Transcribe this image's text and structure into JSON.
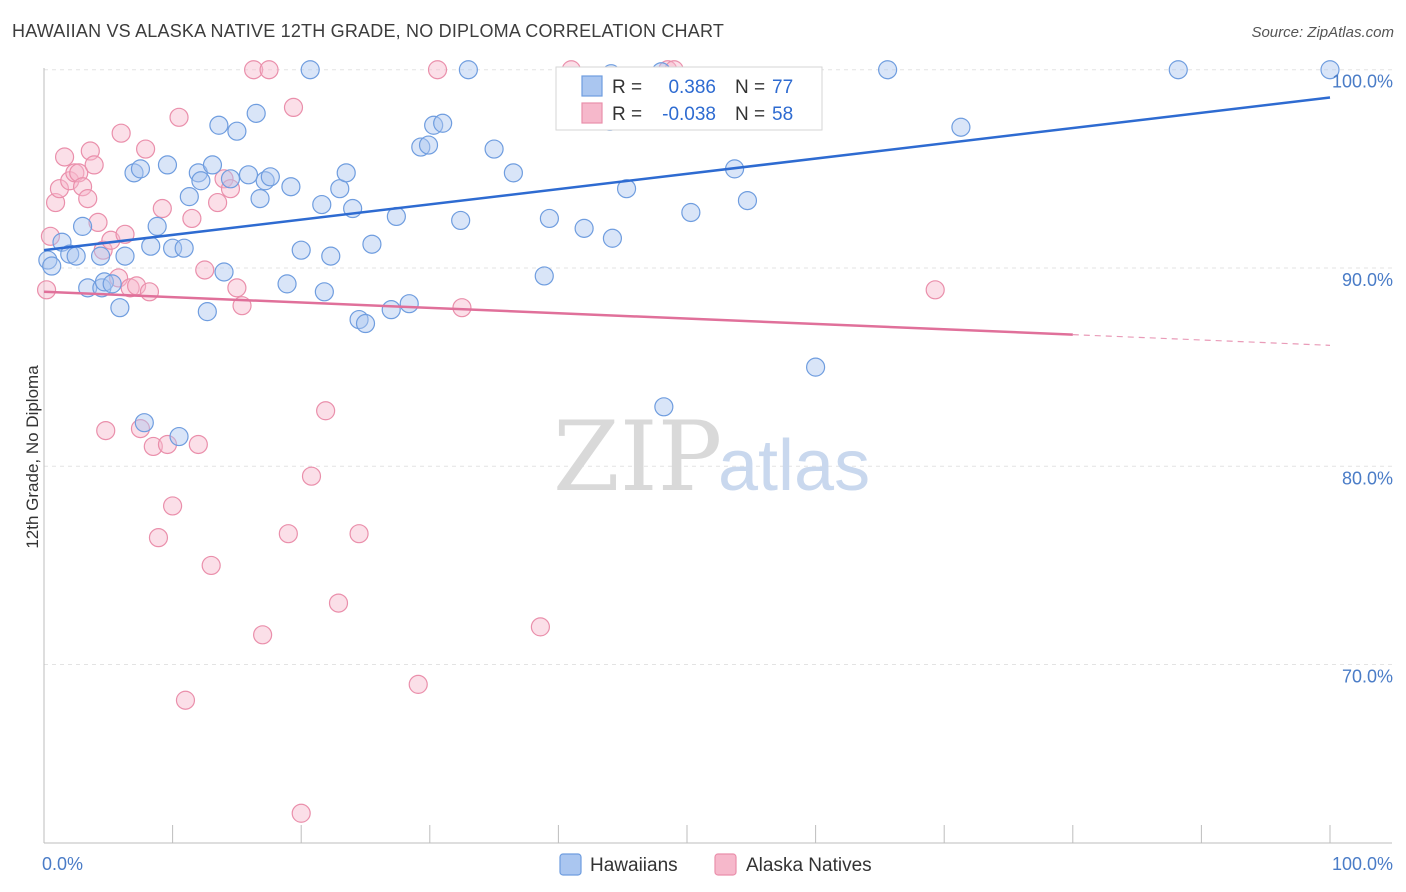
{
  "title": "HAWAIIAN VS ALASKA NATIVE 12TH GRADE, NO DIPLOMA CORRELATION CHART",
  "source": "Source: ZipAtlas.com",
  "watermark": {
    "zip": "ZIP",
    "atlas": "atlas"
  },
  "colors": {
    "blue_fill": "#aac6f0",
    "blue_stroke": "#6f9ddf",
    "blue_line": "#2e6bd1",
    "pink_fill": "#f6b8cb",
    "pink_stroke": "#ea8fab",
    "pink_line": "#e0709a",
    "grid": "#e3e3e3",
    "tick_label": "#4a7cc7"
  },
  "legend": {
    "rows": [
      {
        "r_label": "R =",
        "r_value": "0.386",
        "n_label": "N =",
        "n_value": "77"
      },
      {
        "r_label": "R =",
        "r_value": "-0.038",
        "n_label": "N =",
        "n_value": "58"
      }
    ]
  },
  "chart_data": {
    "type": "scatter",
    "ylabel": "12th Grade, No Diploma",
    "xlim": [
      0,
      100
    ],
    "ylim": [
      61,
      101.5
    ],
    "x_tick_labels": [
      {
        "x": 0,
        "label": "0.0%"
      },
      {
        "x": 100,
        "label": "100.0%"
      }
    ],
    "y_tick_labels": [
      {
        "y": 100,
        "label": "100.0%"
      },
      {
        "y": 90,
        "label": "90.0%"
      },
      {
        "y": 80,
        "label": "80.0%"
      },
      {
        "y": 70,
        "label": "70.0%"
      }
    ],
    "grid": true,
    "legend_position": "top-center",
    "series": [
      {
        "name": "Hawaiians",
        "trend": {
          "x0": 0,
          "y0": 90.9,
          "x1": 100,
          "y1": 98.6,
          "dashed_from": null
        },
        "points": [
          [
            0.3,
            90.4
          ],
          [
            0.6,
            90.1
          ],
          [
            1.4,
            91.3
          ],
          [
            2.0,
            90.7
          ],
          [
            2.5,
            90.6
          ],
          [
            3.0,
            92.1
          ],
          [
            3.4,
            89.0
          ],
          [
            4.4,
            90.6
          ],
          [
            4.5,
            89.0
          ],
          [
            4.7,
            89.3
          ],
          [
            5.3,
            89.2
          ],
          [
            5.9,
            88.0
          ],
          [
            6.3,
            90.6
          ],
          [
            7.0,
            94.8
          ],
          [
            7.5,
            95.0
          ],
          [
            7.8,
            82.2
          ],
          [
            8.3,
            91.1
          ],
          [
            8.8,
            92.1
          ],
          [
            9.6,
            95.2
          ],
          [
            10.0,
            91.0
          ],
          [
            10.5,
            81.5
          ],
          [
            10.9,
            91.0
          ],
          [
            11.3,
            93.6
          ],
          [
            12.0,
            94.8
          ],
          [
            12.2,
            94.4
          ],
          [
            12.7,
            87.8
          ],
          [
            13.1,
            95.2
          ],
          [
            13.6,
            97.2
          ],
          [
            14.0,
            89.8
          ],
          [
            14.5,
            94.5
          ],
          [
            15.0,
            96.9
          ],
          [
            15.9,
            94.7
          ],
          [
            16.5,
            97.8
          ],
          [
            16.8,
            93.5
          ],
          [
            17.2,
            94.4
          ],
          [
            17.6,
            94.6
          ],
          [
            18.9,
            89.2
          ],
          [
            19.2,
            94.1
          ],
          [
            20.0,
            90.9
          ],
          [
            20.7,
            100.0
          ],
          [
            21.6,
            93.2
          ],
          [
            21.8,
            88.8
          ],
          [
            22.3,
            90.6
          ],
          [
            23.0,
            94.0
          ],
          [
            23.5,
            94.8
          ],
          [
            24.0,
            93.0
          ],
          [
            24.5,
            87.4
          ],
          [
            25.0,
            87.2
          ],
          [
            25.5,
            91.2
          ],
          [
            27.0,
            87.9
          ],
          [
            27.4,
            92.6
          ],
          [
            28.4,
            88.2
          ],
          [
            29.3,
            96.1
          ],
          [
            29.9,
            96.2
          ],
          [
            30.3,
            97.2
          ],
          [
            31.0,
            97.3
          ],
          [
            32.4,
            92.4
          ],
          [
            33.0,
            100.0
          ],
          [
            35.0,
            96.0
          ],
          [
            36.5,
            94.8
          ],
          [
            38.9,
            89.6
          ],
          [
            39.3,
            92.5
          ],
          [
            42.0,
            92.0
          ],
          [
            44.0,
            97.4
          ],
          [
            44.2,
            91.5
          ],
          [
            45.3,
            94.0
          ],
          [
            48.2,
            83.0
          ],
          [
            50.3,
            92.8
          ],
          [
            53.7,
            95.0
          ],
          [
            54.7,
            93.4
          ],
          [
            60.0,
            85.0
          ],
          [
            65.6,
            100.0
          ],
          [
            71.3,
            97.1
          ],
          [
            88.2,
            100.0
          ],
          [
            100.0,
            100.0
          ],
          [
            44.1,
            99.8
          ],
          [
            48.0,
            99.9
          ]
        ]
      },
      {
        "name": "Alaska Natives",
        "trend": {
          "x0": 0,
          "y0": 88.8,
          "x1": 100,
          "y1": 86.1,
          "dashed_from": 80
        },
        "points": [
          [
            0.2,
            88.9
          ],
          [
            0.5,
            91.6
          ],
          [
            0.9,
            93.3
          ],
          [
            1.2,
            94.0
          ],
          [
            1.6,
            95.6
          ],
          [
            2.0,
            94.4
          ],
          [
            2.4,
            94.8
          ],
          [
            2.7,
            94.8
          ],
          [
            3.0,
            94.1
          ],
          [
            3.4,
            93.5
          ],
          [
            3.6,
            95.9
          ],
          [
            3.9,
            95.2
          ],
          [
            4.2,
            92.3
          ],
          [
            4.6,
            90.9
          ],
          [
            4.8,
            81.8
          ],
          [
            5.2,
            91.4
          ],
          [
            5.8,
            89.5
          ],
          [
            6.0,
            96.8
          ],
          [
            6.3,
            91.7
          ],
          [
            6.7,
            89.0
          ],
          [
            7.2,
            89.1
          ],
          [
            7.5,
            81.9
          ],
          [
            7.9,
            96.0
          ],
          [
            8.2,
            88.8
          ],
          [
            8.5,
            81.0
          ],
          [
            8.9,
            76.4
          ],
          [
            9.2,
            93.0
          ],
          [
            9.6,
            81.1
          ],
          [
            10.0,
            78.0
          ],
          [
            10.5,
            97.6
          ],
          [
            11.0,
            68.2
          ],
          [
            11.5,
            92.5
          ],
          [
            12.0,
            81.1
          ],
          [
            12.5,
            89.9
          ],
          [
            13.0,
            75.0
          ],
          [
            13.5,
            93.3
          ],
          [
            14.0,
            94.5
          ],
          [
            14.5,
            94.0
          ],
          [
            15.0,
            89.0
          ],
          [
            15.4,
            88.1
          ],
          [
            16.3,
            100.0
          ],
          [
            17.0,
            71.5
          ],
          [
            17.5,
            100.0
          ],
          [
            19.0,
            76.6
          ],
          [
            19.4,
            98.1
          ],
          [
            20.0,
            62.5
          ],
          [
            20.8,
            79.5
          ],
          [
            21.9,
            82.8
          ],
          [
            22.9,
            73.1
          ],
          [
            24.5,
            76.6
          ],
          [
            29.1,
            69.0
          ],
          [
            30.6,
            100.0
          ],
          [
            32.5,
            88.0
          ],
          [
            38.6,
            71.9
          ],
          [
            41.0,
            100.0
          ],
          [
            69.3,
            88.9
          ],
          [
            48.5,
            100.0
          ],
          [
            49.0,
            100.0
          ]
        ]
      }
    ]
  },
  "bottom_legend": [
    {
      "label": "Hawaiians"
    },
    {
      "label": "Alaska Natives"
    }
  ]
}
